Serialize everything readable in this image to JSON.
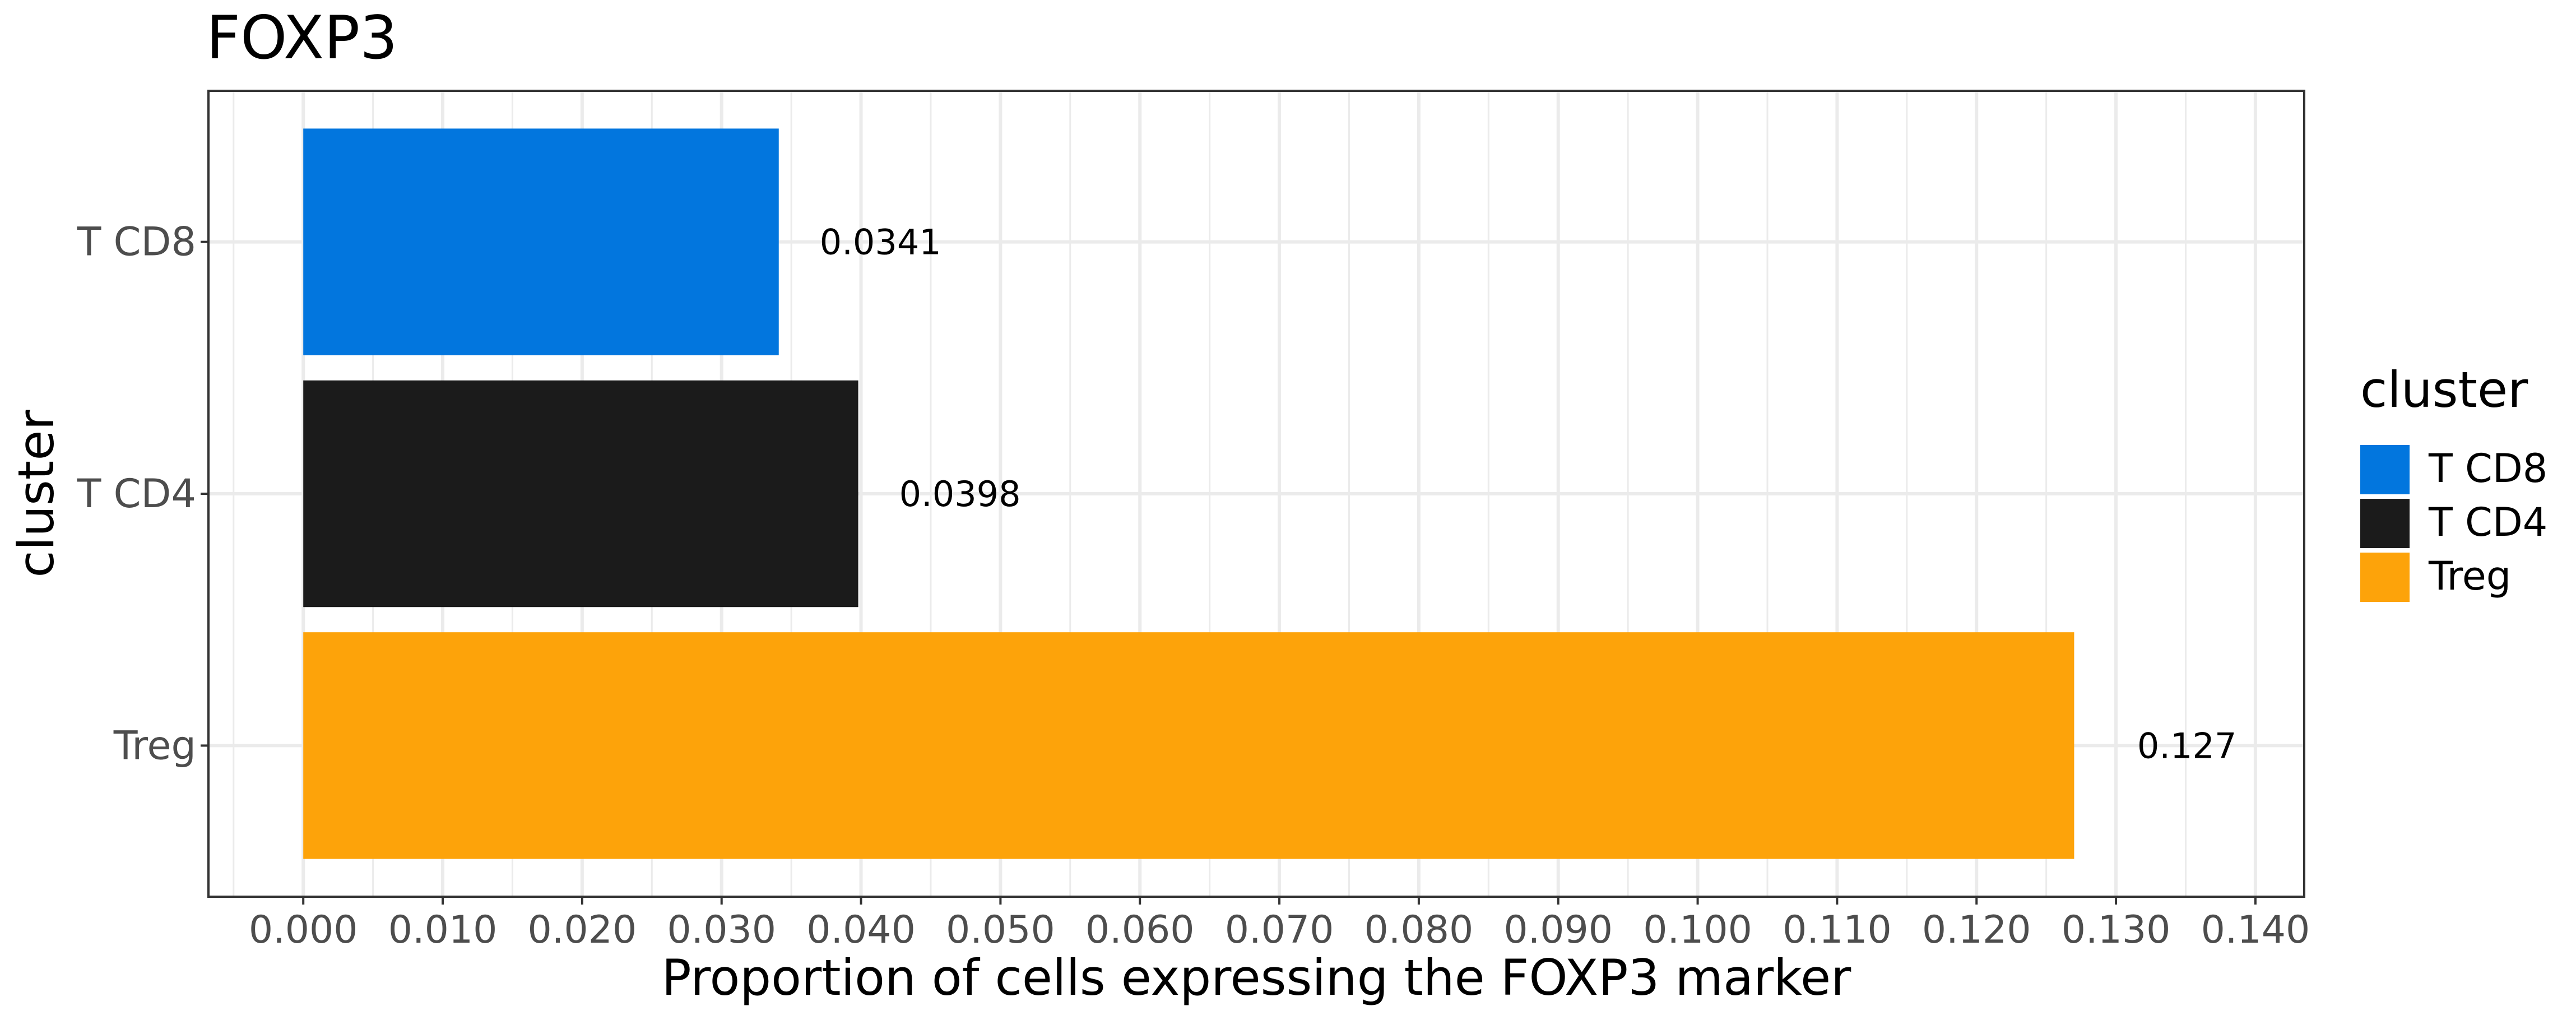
{
  "chart_data": {
    "type": "bar",
    "orientation": "horizontal",
    "title": "FOXP3",
    "xlabel": "Proportion of cells expressing the FOXP3 marker",
    "ylabel": "cluster",
    "categories": [
      "T CD8",
      "T CD4",
      "Treg"
    ],
    "values": [
      0.0341,
      0.0398,
      0.127
    ],
    "value_labels": [
      "0.0341",
      "0.0398",
      "0.127"
    ],
    "colors": [
      "#0276DE",
      "#1B1B1B",
      "#FDA30A"
    ],
    "xlim": [
      -0.0068,
      0.1435
    ],
    "x_ticks": [
      0.0,
      0.01,
      0.02,
      0.03,
      0.04,
      0.05,
      0.06,
      0.07,
      0.08,
      0.09,
      0.1,
      0.11,
      0.12,
      0.13,
      0.14
    ],
    "x_tick_labels": [
      "0.000",
      "0.010",
      "0.020",
      "0.030",
      "0.040",
      "0.050",
      "0.060",
      "0.070",
      "0.080",
      "0.090",
      "0.100",
      "0.110",
      "0.120",
      "0.130",
      "0.140"
    ],
    "grid": true,
    "legend": {
      "title": "cluster",
      "position": "right",
      "entries": [
        "T CD8",
        "T CD4",
        "Treg"
      ]
    }
  }
}
